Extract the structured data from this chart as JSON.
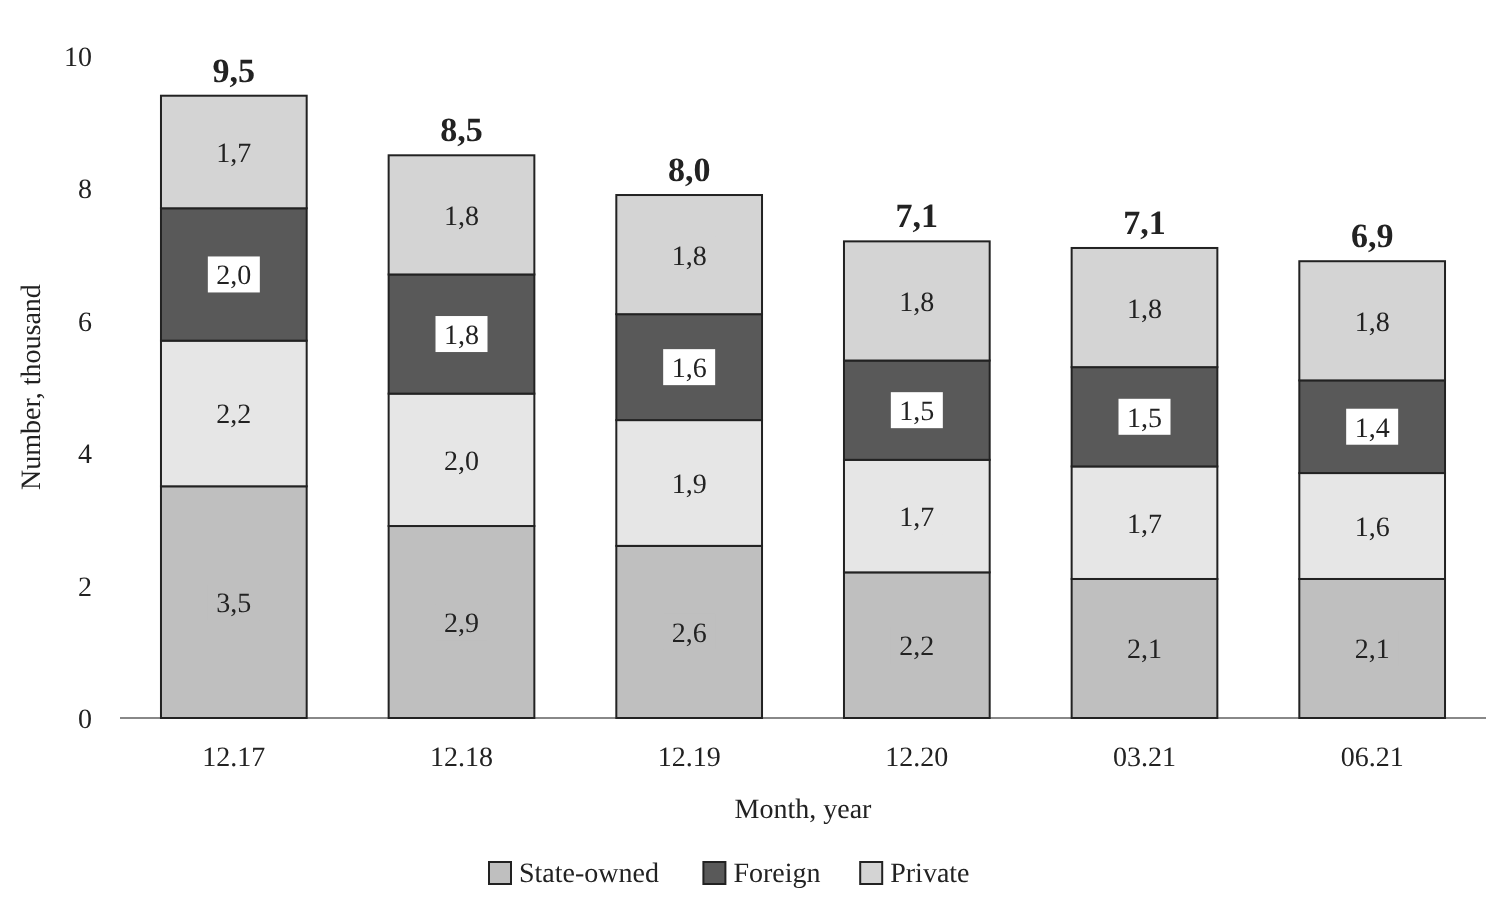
{
  "chart_data": {
    "type": "bar",
    "stacked": true,
    "xlabel": "Month, year",
    "ylabel": "Number, thousand",
    "categories": [
      "12.17",
      "12.18",
      "12.19",
      "12.20",
      "03.21",
      "06.21"
    ],
    "ylim": [
      0,
      10
    ],
    "yticks": [
      0,
      2,
      4,
      6,
      8,
      10
    ],
    "grid": false,
    "legend": "bottom",
    "series": [
      {
        "name": "State-owned",
        "color": "#bfbfbf",
        "values": [
          3.5,
          2.9,
          2.6,
          2.2,
          2.1,
          2.1
        ],
        "value_labels": [
          "3,5",
          "2,9",
          "2,6",
          "2,2",
          "2,1",
          "2,1"
        ]
      },
      {
        "color": "#e6e6e6",
        "values": [
          2.2,
          2.0,
          1.9,
          1.7,
          1.7,
          1.6
        ],
        "value_labels": [
          "2,2",
          "2,0",
          "1,9",
          "1,7",
          "1,7",
          "1,6"
        ]
      },
      {
        "name": "Foreign",
        "color": "#595959",
        "values": [
          2.0,
          1.8,
          1.6,
          1.5,
          1.5,
          1.4
        ],
        "value_labels": [
          "2,0",
          "1,8",
          "1,6",
          "1,5",
          "1,5",
          "1,4"
        ]
      },
      {
        "name": "Private",
        "color": "#d4d4d4",
        "values": [
          1.7,
          1.8,
          1.8,
          1.8,
          1.8,
          1.8
        ],
        "value_labels": [
          "1,7",
          "1,8",
          "1,8",
          "1,8",
          "1,8",
          "1,8"
        ]
      }
    ],
    "totals": [
      "9,5",
      "8,5",
      "8,0",
      "7,1",
      "7,1",
      "6,9"
    ]
  }
}
